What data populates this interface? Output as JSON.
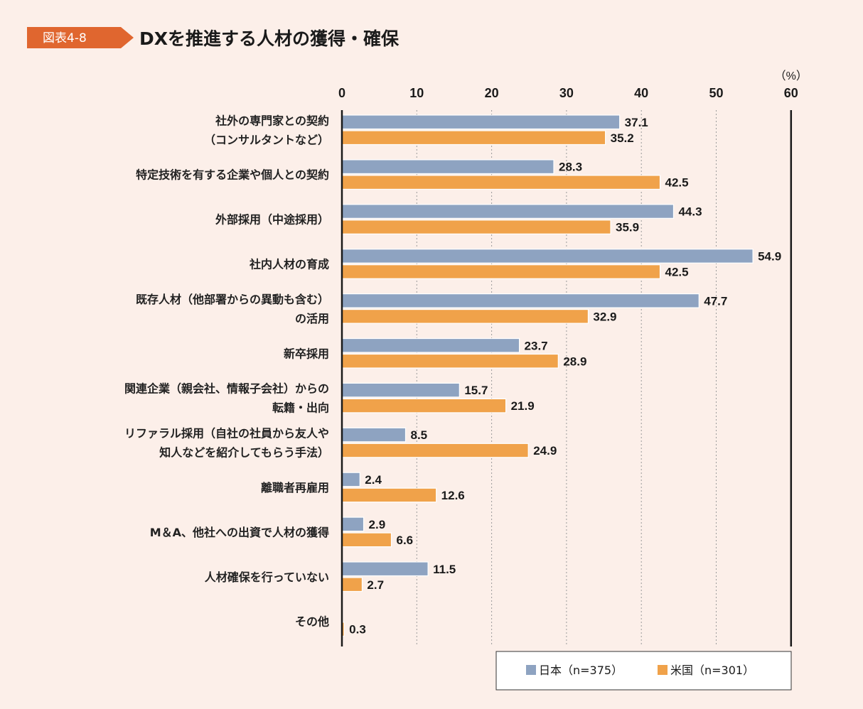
{
  "figure": {
    "badge": "図表4-8",
    "title": "DXを推進する人材の獲得・確保"
  },
  "chart_data": {
    "type": "bar",
    "orientation": "horizontal",
    "unit_label": "（%）",
    "xlim": [
      0,
      60
    ],
    "ticks": [
      0,
      10,
      20,
      30,
      40,
      50,
      60
    ],
    "grid": "dotted vertical",
    "categories": [
      [
        "社外の専門家との契約",
        "（コンサルタントなど）"
      ],
      [
        "特定技術を有する企業や個人との契約"
      ],
      [
        "外部採用（中途採用）"
      ],
      [
        "社内人材の育成"
      ],
      [
        "既存人材（他部署からの異動も含む）",
        "の活用"
      ],
      [
        "新卒採用"
      ],
      [
        "関連企業（親会社、情報子会社）からの",
        "転籍・出向"
      ],
      [
        "リファラル採用（自社の社員から友人や",
        "知人などを紹介してもらう手法）"
      ],
      [
        "離職者再雇用"
      ],
      [
        "M＆A、他社への出資で人材の獲得"
      ],
      [
        "人材確保を行っていない"
      ],
      [
        "その他"
      ]
    ],
    "series": [
      {
        "name": "日本（n=375）",
        "color": "#8ea3c1",
        "values": [
          37.1,
          28.3,
          44.3,
          54.9,
          47.7,
          23.7,
          15.7,
          8.5,
          2.4,
          2.9,
          11.5,
          null
        ],
        "labels": [
          "37.1",
          "28.3",
          "44.3",
          "54.9",
          "47.7",
          "23.7",
          "15.7",
          "8.5",
          "2.4",
          "2.9",
          "11.5",
          ""
        ]
      },
      {
        "name": "米国（n=301）",
        "color": "#f0a24a",
        "values": [
          35.2,
          42.5,
          35.9,
          42.5,
          32.9,
          28.9,
          21.9,
          24.9,
          12.6,
          6.6,
          2.7,
          0.3
        ],
        "labels": [
          "35.2",
          "42.5",
          "35.9",
          "42.5",
          "32.9",
          "28.9",
          "21.9",
          "24.9",
          "12.6",
          "6.6",
          "2.7",
          "0.3"
        ]
      }
    ],
    "legend_position": "bottom-right"
  }
}
